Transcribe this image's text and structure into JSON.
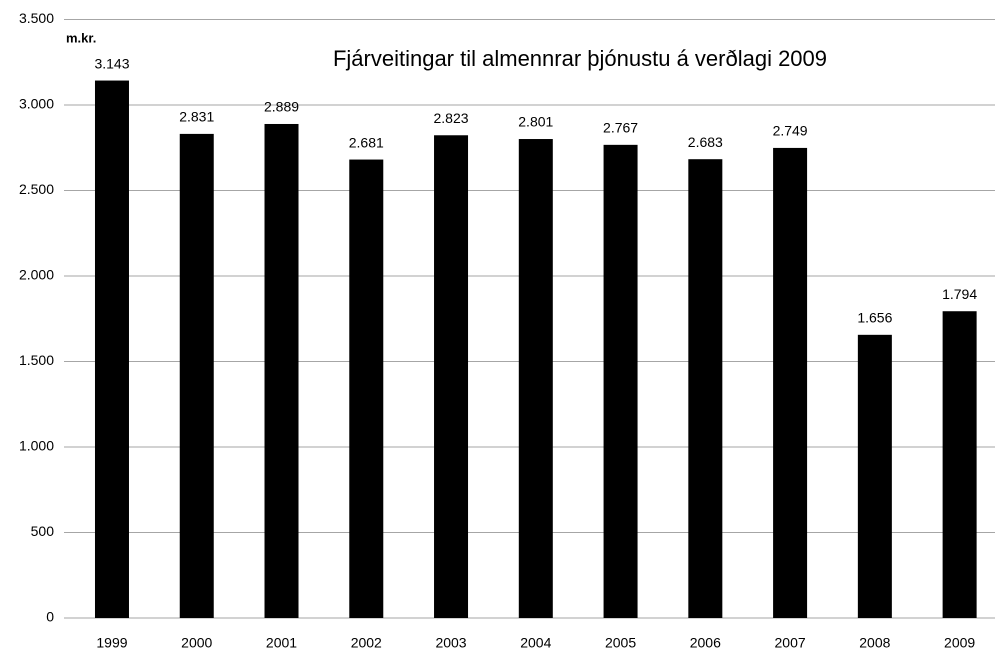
{
  "chart_data": {
    "type": "bar",
    "title": "Fjárveitingar til almennrar þjónustu á verðlagi 2009",
    "ylabel": "m.kr.",
    "categories": [
      "1999",
      "2000",
      "2001",
      "2002",
      "2003",
      "2004",
      "2005",
      "2006",
      "2007",
      "2008",
      "2009"
    ],
    "values": [
      3143,
      2831,
      2889,
      2681,
      2823,
      2801,
      2767,
      2683,
      2749,
      1656,
      1794
    ],
    "value_labels": [
      "3.143",
      "2.831",
      "2.889",
      "2.681",
      "2.823",
      "2.801",
      "2.767",
      "2.683",
      "2.749",
      "1.656",
      "1.794"
    ],
    "color": "#000000",
    "ylim": [
      0,
      3500
    ],
    "yticks": [
      0,
      500,
      {
        "value": 1000,
        "label": "1.000"
      },
      {
        "value": 1500,
        "label": "1.500"
      },
      {
        "value": 2000,
        "label": "2.000"
      },
      {
        "value": 2500,
        "label": "2.500"
      },
      {
        "value": 3000,
        "label": "3.000"
      },
      {
        "value": 3500,
        "label": "3.500"
      }
    ],
    "grid": true
  }
}
